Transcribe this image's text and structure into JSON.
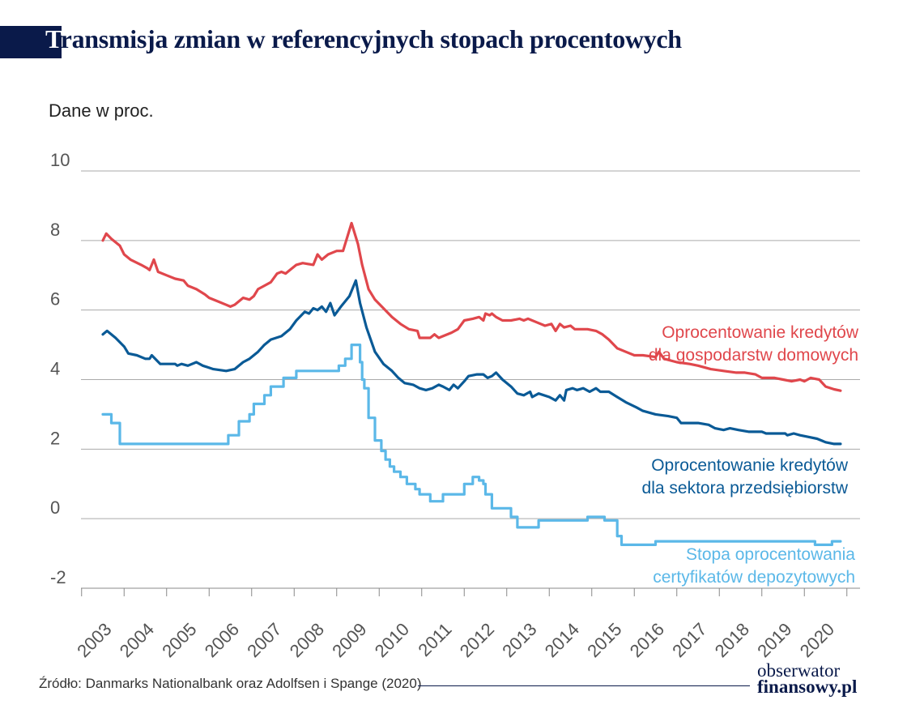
{
  "header": {
    "title_first_letter": "T",
    "title_rest": "ransmisja zmian w referencyjnych stopach procentowych",
    "unit_label": "Dane w proc."
  },
  "footer": {
    "source": "Źródło: Danmarks Nationalbank oraz Adolfsen i Spange (2020)",
    "logo_line1": "obserwator",
    "logo_line2": "finansowy.pl"
  },
  "colors": {
    "households": "#e0474c",
    "enterprises": "#0a5a96",
    "cd_rate": "#5bb8e8",
    "title": "#0a1a4a",
    "grid": "#aaaaaa",
    "axis_text": "#555555"
  },
  "chart_data": {
    "type": "line",
    "title": "Transmisja zmian w referencyjnych stopach procentowych",
    "ylabel": "Dane w proc.",
    "ylim": [
      -2,
      10
    ],
    "yticks": [
      "10",
      "8",
      "6",
      "4",
      "2",
      "0",
      "-2"
    ],
    "xlim": [
      2002.5,
      2020.5
    ],
    "xticks": [
      "2003",
      "2004",
      "2005",
      "2006",
      "2007",
      "2008",
      "2009",
      "2010",
      "2011",
      "2012",
      "2013",
      "2014",
      "2015",
      "2016",
      "2017",
      "2018",
      "2019",
      "2020"
    ],
    "grid": true,
    "series": [
      {
        "name_line1": "Oprocentowanie kredytów",
        "name_line2": "dla gospodarstw domowych",
        "key": "households",
        "step": false,
        "points": [
          [
            2003.0,
            8.0
          ],
          [
            2003.08,
            8.2
          ],
          [
            2003.2,
            8.05
          ],
          [
            2003.4,
            7.85
          ],
          [
            2003.5,
            7.6
          ],
          [
            2003.65,
            7.45
          ],
          [
            2003.9,
            7.3
          ],
          [
            2004.05,
            7.2
          ],
          [
            2004.1,
            7.15
          ],
          [
            2004.2,
            7.45
          ],
          [
            2004.3,
            7.1
          ],
          [
            2004.5,
            7.0
          ],
          [
            2004.7,
            6.9
          ],
          [
            2004.9,
            6.85
          ],
          [
            2005.0,
            6.7
          ],
          [
            2005.2,
            6.6
          ],
          [
            2005.4,
            6.45
          ],
          [
            2005.5,
            6.35
          ],
          [
            2005.7,
            6.25
          ],
          [
            2005.9,
            6.15
          ],
          [
            2006.0,
            6.1
          ],
          [
            2006.1,
            6.15
          ],
          [
            2006.3,
            6.35
          ],
          [
            2006.45,
            6.3
          ],
          [
            2006.55,
            6.4
          ],
          [
            2006.65,
            6.6
          ],
          [
            2006.8,
            6.7
          ],
          [
            2006.95,
            6.8
          ],
          [
            2007.1,
            7.05
          ],
          [
            2007.2,
            7.1
          ],
          [
            2007.3,
            7.05
          ],
          [
            2007.4,
            7.15
          ],
          [
            2007.55,
            7.3
          ],
          [
            2007.7,
            7.35
          ],
          [
            2007.95,
            7.3
          ],
          [
            2008.05,
            7.6
          ],
          [
            2008.15,
            7.45
          ],
          [
            2008.3,
            7.6
          ],
          [
            2008.5,
            7.7
          ],
          [
            2008.65,
            7.7
          ],
          [
            2008.85,
            8.5
          ],
          [
            2009.0,
            7.9
          ],
          [
            2009.1,
            7.3
          ],
          [
            2009.25,
            6.6
          ],
          [
            2009.4,
            6.3
          ],
          [
            2009.6,
            6.05
          ],
          [
            2009.8,
            5.8
          ],
          [
            2010.0,
            5.6
          ],
          [
            2010.2,
            5.45
          ],
          [
            2010.4,
            5.4
          ],
          [
            2010.45,
            5.2
          ],
          [
            2010.7,
            5.2
          ],
          [
            2010.8,
            5.3
          ],
          [
            2010.9,
            5.2
          ],
          [
            2011.0,
            5.25
          ],
          [
            2011.2,
            5.35
          ],
          [
            2011.35,
            5.45
          ],
          [
            2011.5,
            5.7
          ],
          [
            2011.7,
            5.75
          ],
          [
            2011.85,
            5.8
          ],
          [
            2011.95,
            5.7
          ],
          [
            2012.0,
            5.9
          ],
          [
            2012.1,
            5.85
          ],
          [
            2012.15,
            5.9
          ],
          [
            2012.25,
            5.8
          ],
          [
            2012.4,
            5.7
          ],
          [
            2012.6,
            5.7
          ],
          [
            2012.8,
            5.75
          ],
          [
            2012.9,
            5.7
          ],
          [
            2013.0,
            5.75
          ],
          [
            2013.2,
            5.65
          ],
          [
            2013.4,
            5.55
          ],
          [
            2013.55,
            5.6
          ],
          [
            2013.65,
            5.4
          ],
          [
            2013.75,
            5.6
          ],
          [
            2013.85,
            5.5
          ],
          [
            2014.0,
            5.55
          ],
          [
            2014.1,
            5.45
          ],
          [
            2014.4,
            5.45
          ],
          [
            2014.6,
            5.4
          ],
          [
            2014.75,
            5.3
          ],
          [
            2014.9,
            5.15
          ],
          [
            2015.1,
            4.9
          ],
          [
            2015.3,
            4.8
          ],
          [
            2015.5,
            4.7
          ],
          [
            2015.7,
            4.7
          ],
          [
            2016.0,
            4.65
          ],
          [
            2016.08,
            4.8
          ],
          [
            2016.2,
            4.6
          ],
          [
            2016.5,
            4.5
          ],
          [
            2016.8,
            4.45
          ],
          [
            2017.0,
            4.4
          ],
          [
            2017.3,
            4.3
          ],
          [
            2017.6,
            4.25
          ],
          [
            2017.9,
            4.2
          ],
          [
            2018.1,
            4.2
          ],
          [
            2018.35,
            4.15
          ],
          [
            2018.5,
            4.05
          ],
          [
            2018.8,
            4.05
          ],
          [
            2019.0,
            4.0
          ],
          [
            2019.2,
            3.95
          ],
          [
            2019.4,
            4.0
          ],
          [
            2019.5,
            3.95
          ],
          [
            2019.65,
            4.05
          ],
          [
            2019.85,
            4.0
          ],
          [
            2020.0,
            3.8
          ],
          [
            2020.2,
            3.72
          ],
          [
            2020.35,
            3.68
          ]
        ]
      },
      {
        "name_line1": "Oprocentowanie kredytów",
        "name_line2": "dla sektora przedsiębiorstw",
        "key": "enterprises",
        "step": false,
        "points": [
          [
            2003.0,
            5.3
          ],
          [
            2003.1,
            5.4
          ],
          [
            2003.3,
            5.2
          ],
          [
            2003.5,
            4.95
          ],
          [
            2003.6,
            4.75
          ],
          [
            2003.8,
            4.7
          ],
          [
            2004.0,
            4.6
          ],
          [
            2004.1,
            4.6
          ],
          [
            2004.15,
            4.7
          ],
          [
            2004.35,
            4.45
          ],
          [
            2004.7,
            4.45
          ],
          [
            2004.75,
            4.4
          ],
          [
            2004.85,
            4.45
          ],
          [
            2005.0,
            4.4
          ],
          [
            2005.2,
            4.5
          ],
          [
            2005.35,
            4.4
          ],
          [
            2005.6,
            4.3
          ],
          [
            2005.9,
            4.25
          ],
          [
            2006.1,
            4.3
          ],
          [
            2006.3,
            4.5
          ],
          [
            2006.45,
            4.6
          ],
          [
            2006.65,
            4.8
          ],
          [
            2006.8,
            5.0
          ],
          [
            2006.95,
            5.15
          ],
          [
            2007.2,
            5.25
          ],
          [
            2007.4,
            5.45
          ],
          [
            2007.55,
            5.7
          ],
          [
            2007.75,
            5.95
          ],
          [
            2007.85,
            5.9
          ],
          [
            2007.95,
            6.05
          ],
          [
            2008.05,
            6.0
          ],
          [
            2008.15,
            6.1
          ],
          [
            2008.25,
            5.95
          ],
          [
            2008.35,
            6.2
          ],
          [
            2008.45,
            5.85
          ],
          [
            2008.6,
            6.1
          ],
          [
            2008.8,
            6.4
          ],
          [
            2008.95,
            6.85
          ],
          [
            2009.05,
            6.2
          ],
          [
            2009.2,
            5.5
          ],
          [
            2009.4,
            4.8
          ],
          [
            2009.6,
            4.45
          ],
          [
            2009.8,
            4.25
          ],
          [
            2009.95,
            4.05
          ],
          [
            2010.1,
            3.9
          ],
          [
            2010.3,
            3.85
          ],
          [
            2010.45,
            3.75
          ],
          [
            2010.6,
            3.7
          ],
          [
            2010.75,
            3.75
          ],
          [
            2010.9,
            3.85
          ],
          [
            2011.0,
            3.8
          ],
          [
            2011.15,
            3.7
          ],
          [
            2011.25,
            3.85
          ],
          [
            2011.35,
            3.75
          ],
          [
            2011.5,
            3.95
          ],
          [
            2011.6,
            4.1
          ],
          [
            2011.8,
            4.15
          ],
          [
            2011.95,
            4.15
          ],
          [
            2012.05,
            4.05
          ],
          [
            2012.15,
            4.1
          ],
          [
            2012.25,
            4.2
          ],
          [
            2012.4,
            4.0
          ],
          [
            2012.6,
            3.8
          ],
          [
            2012.75,
            3.6
          ],
          [
            2012.9,
            3.55
          ],
          [
            2013.05,
            3.65
          ],
          [
            2013.1,
            3.5
          ],
          [
            2013.25,
            3.6
          ],
          [
            2013.5,
            3.5
          ],
          [
            2013.65,
            3.4
          ],
          [
            2013.75,
            3.55
          ],
          [
            2013.85,
            3.4
          ],
          [
            2013.9,
            3.7
          ],
          [
            2014.05,
            3.75
          ],
          [
            2014.15,
            3.7
          ],
          [
            2014.3,
            3.75
          ],
          [
            2014.45,
            3.65
          ],
          [
            2014.6,
            3.75
          ],
          [
            2014.7,
            3.65
          ],
          [
            2014.9,
            3.65
          ],
          [
            2015.1,
            3.5
          ],
          [
            2015.3,
            3.35
          ],
          [
            2015.55,
            3.2
          ],
          [
            2015.7,
            3.1
          ],
          [
            2016.0,
            3.0
          ],
          [
            2016.3,
            2.95
          ],
          [
            2016.5,
            2.9
          ],
          [
            2016.6,
            2.75
          ],
          [
            2017.0,
            2.75
          ],
          [
            2017.25,
            2.7
          ],
          [
            2017.4,
            2.6
          ],
          [
            2017.6,
            2.55
          ],
          [
            2017.75,
            2.6
          ],
          [
            2017.95,
            2.55
          ],
          [
            2018.2,
            2.5
          ],
          [
            2018.5,
            2.5
          ],
          [
            2018.6,
            2.45
          ],
          [
            2018.85,
            2.45
          ],
          [
            2019.05,
            2.45
          ],
          [
            2019.1,
            2.4
          ],
          [
            2019.25,
            2.45
          ],
          [
            2019.4,
            2.4
          ],
          [
            2019.6,
            2.35
          ],
          [
            2019.8,
            2.3
          ],
          [
            2020.0,
            2.2
          ],
          [
            2020.2,
            2.15
          ],
          [
            2020.35,
            2.15
          ]
        ]
      },
      {
        "name_line1": "Stopa oprocentowania",
        "name_line2": "certyfikatów depozytowych",
        "key": "cd_rate",
        "step": true,
        "points": [
          [
            2003.0,
            3.0
          ],
          [
            2003.2,
            2.75
          ],
          [
            2003.4,
            2.15
          ],
          [
            2005.95,
            2.4
          ],
          [
            2006.2,
            2.8
          ],
          [
            2006.45,
            3.0
          ],
          [
            2006.55,
            3.3
          ],
          [
            2006.8,
            3.55
          ],
          [
            2006.95,
            3.8
          ],
          [
            2007.25,
            4.05
          ],
          [
            2007.55,
            4.25
          ],
          [
            2008.55,
            4.4
          ],
          [
            2008.7,
            4.6
          ],
          [
            2008.85,
            5.0
          ],
          [
            2009.05,
            4.5
          ],
          [
            2009.1,
            4.0
          ],
          [
            2009.15,
            3.75
          ],
          [
            2009.25,
            2.9
          ],
          [
            2009.4,
            2.25
          ],
          [
            2009.55,
            1.95
          ],
          [
            2009.65,
            1.7
          ],
          [
            2009.75,
            1.5
          ],
          [
            2009.85,
            1.35
          ],
          [
            2010.0,
            1.2
          ],
          [
            2010.15,
            1.0
          ],
          [
            2010.35,
            0.85
          ],
          [
            2010.45,
            0.7
          ],
          [
            2010.7,
            0.5
          ],
          [
            2011.0,
            0.7
          ],
          [
            2011.35,
            0.7
          ],
          [
            2011.5,
            1.0
          ],
          [
            2011.7,
            1.2
          ],
          [
            2011.85,
            1.1
          ],
          [
            2011.95,
            1.0
          ],
          [
            2012.0,
            0.7
          ],
          [
            2012.15,
            0.3
          ],
          [
            2012.6,
            0.05
          ],
          [
            2012.75,
            -0.25
          ],
          [
            2013.25,
            -0.05
          ],
          [
            2014.4,
            0.05
          ],
          [
            2014.8,
            -0.05
          ],
          [
            2015.1,
            -0.5
          ],
          [
            2015.2,
            -0.75
          ],
          [
            2015.95,
            -0.75
          ],
          [
            2016.0,
            -0.65
          ],
          [
            2019.75,
            -0.75
          ],
          [
            2020.15,
            -0.65
          ],
          [
            2020.35,
            -0.65
          ]
        ]
      }
    ]
  }
}
